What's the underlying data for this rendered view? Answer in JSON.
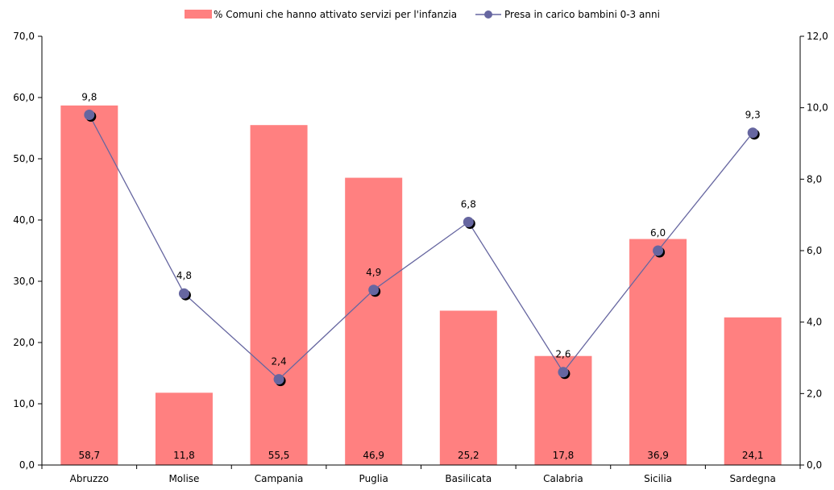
{
  "chart_data": {
    "type": "bar",
    "categories": [
      "Abruzzo",
      "Molise",
      "Campania",
      "Puglia",
      "Basilicata",
      "Calabria",
      "Sicilia",
      "Sardegna"
    ],
    "series": [
      {
        "name": "% Comuni che hanno attivato servizi per l'infanzia",
        "type": "bar",
        "axis": "left",
        "color": "#FF8080",
        "values": [
          58.7,
          11.8,
          55.5,
          46.9,
          25.2,
          17.8,
          36.9,
          24.1
        ],
        "labels": [
          "58,7",
          "11,8",
          "55,5",
          "46,9",
          "25,2",
          "17,8",
          "36,9",
          "24,1"
        ]
      },
      {
        "name": "Presa in carico bambini 0-3 anni",
        "type": "line",
        "axis": "right",
        "color": "#6666A0",
        "values": [
          9.8,
          4.8,
          2.4,
          4.9,
          6.8,
          2.6,
          6.0,
          9.3
        ],
        "labels": [
          "9,8",
          "4,8",
          "2,4",
          "4,9",
          "6,8",
          "2,6",
          "6,0",
          "9,3"
        ]
      }
    ],
    "ylim_left": [
      0,
      70
    ],
    "ylim_right": [
      0,
      12
    ],
    "yticks_left": [
      "0,0",
      "10,0",
      "20,0",
      "30,0",
      "40,0",
      "50,0",
      "60,0",
      "70,0"
    ],
    "yticks_right": [
      "0,0",
      "2,0",
      "4,0",
      "6,0",
      "8,0",
      "10,0",
      "12,0"
    ],
    "grid": false,
    "legend_position": "top-center"
  }
}
